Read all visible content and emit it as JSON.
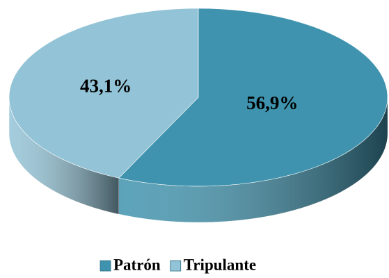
{
  "chart_data": {
    "type": "pie",
    "categories": [
      "Patrón",
      "Tripulante"
    ],
    "values": [
      56.9,
      43.1
    ],
    "value_labels": [
      "56,9%",
      "43,1%"
    ],
    "colors": [
      "#3f93ae",
      "#93c3d6"
    ],
    "legend": "bottom"
  }
}
